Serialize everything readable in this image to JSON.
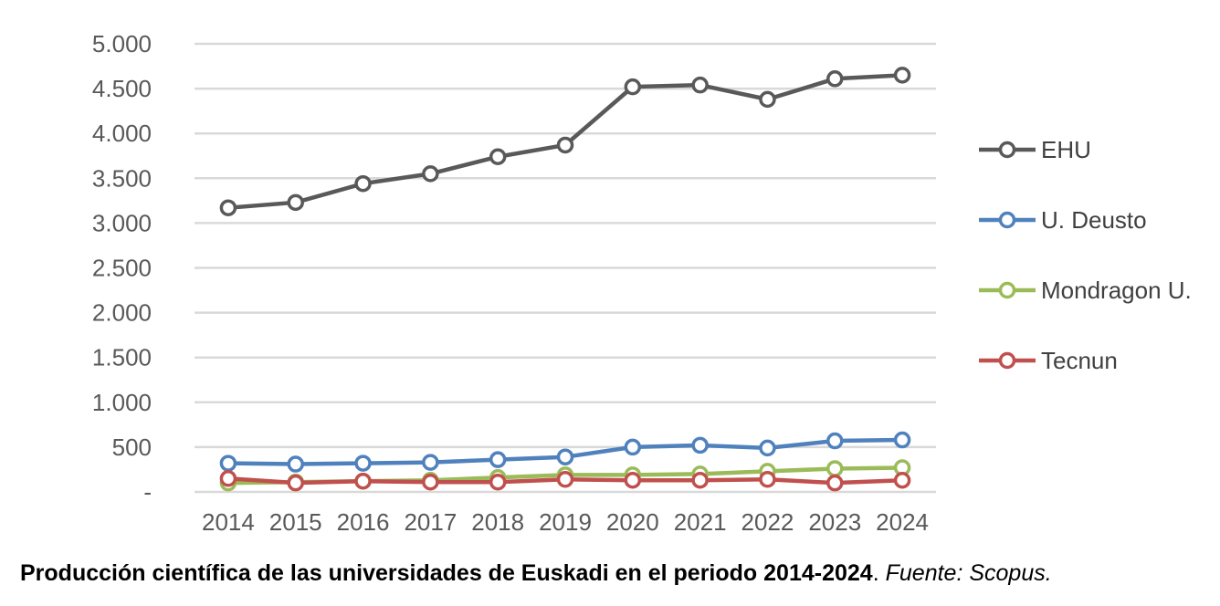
{
  "chart_data": {
    "type": "line",
    "title": "",
    "xlabel": "",
    "ylabel": "",
    "ylim": [
      0,
      5000
    ],
    "y_ticks": [
      0,
      500,
      1000,
      1500,
      2000,
      2500,
      3000,
      3500,
      4000,
      4500,
      5000
    ],
    "y_tick_labels": [
      "-",
      "500",
      "1.000",
      "1.500",
      "2.000",
      "2.500",
      "3.000",
      "3.500",
      "4.000",
      "4.500",
      "5.000"
    ],
    "categories": [
      "2014",
      "2015",
      "2016",
      "2017",
      "2018",
      "2019",
      "2020",
      "2021",
      "2022",
      "2023",
      "2024"
    ],
    "grid": true,
    "legend_position": "right",
    "series": [
      {
        "name": "EHU",
        "color": "#595959",
        "values": [
          3170,
          3230,
          3440,
          3550,
          3740,
          3870,
          4520,
          4540,
          4380,
          4610,
          4650
        ]
      },
      {
        "name": "U. Deusto",
        "color": "#4F81BD",
        "values": [
          320,
          310,
          320,
          330,
          360,
          390,
          500,
          520,
          490,
          570,
          580
        ]
      },
      {
        "name": "Mondragon U.",
        "color": "#9BBB59",
        "values": [
          100,
          110,
          120,
          130,
          160,
          190,
          190,
          200,
          230,
          260,
          270
        ]
      },
      {
        "name": "Tecnun",
        "color": "#C0504D",
        "values": [
          150,
          100,
          120,
          110,
          110,
          140,
          130,
          130,
          140,
          100,
          130
        ]
      }
    ]
  },
  "caption": {
    "bold_text": "Producción científica de las universidades de Euskadi en el periodo 2014-2024",
    "plain_text": ". ",
    "italic_text": "Fuente: Scopus."
  }
}
